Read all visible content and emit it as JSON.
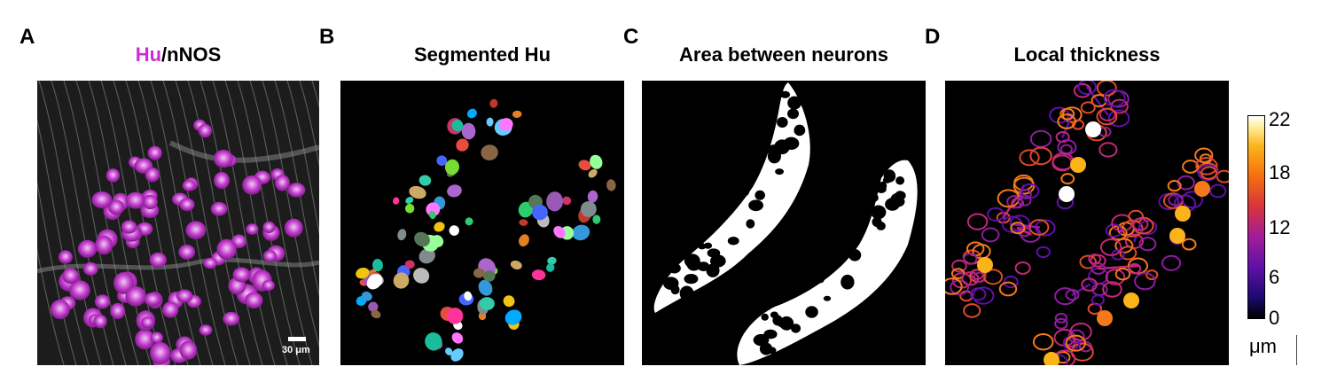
{
  "panels": {
    "a": {
      "letter": "A",
      "title_hu": "Hu",
      "title_rest": "/nNOS",
      "scale_label": "30 μm"
    },
    "b": {
      "letter": "B",
      "title": "Segmented Hu"
    },
    "c": {
      "letter": "C",
      "title": "Area between neurons"
    },
    "d": {
      "letter": "D",
      "title": "Local thickness"
    }
  },
  "colorbar": {
    "ticks": [
      "22",
      "18",
      "12",
      "6",
      "0"
    ],
    "unit": "μm"
  },
  "colors": {
    "hu_magenta": "#d02ad8",
    "background": "#000000"
  }
}
